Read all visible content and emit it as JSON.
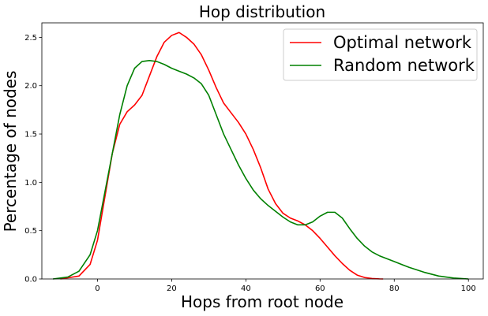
{
  "chart_data": {
    "type": "line",
    "title": "Hop distribution",
    "xlabel": "Hops from root node",
    "ylabel": "Percentage of nodes",
    "xlim": [
      -15,
      104
    ],
    "ylim": [
      0,
      2.65
    ],
    "xticks": [
      0,
      20,
      40,
      60,
      80,
      100
    ],
    "xtick_labels": [
      "0",
      "20",
      "40",
      "60",
      "80",
      "100"
    ],
    "yticks": [
      0.0,
      0.5,
      1.0,
      1.5,
      2.0,
      2.5
    ],
    "ytick_labels": [
      "0.0",
      "0.5",
      "1.0",
      "1.5",
      "2.0",
      "2.5"
    ],
    "grid": false,
    "legend_position": "top-right",
    "series": [
      {
        "name": "Optimal network",
        "color": "#ff0000",
        "x": [
          -10,
          -5,
          -2,
          0,
          2,
          4,
          6,
          8,
          10,
          12,
          14,
          16,
          18,
          20,
          22,
          24,
          26,
          28,
          30,
          32,
          34,
          36,
          38,
          40,
          42,
          44,
          46,
          48,
          50,
          52,
          54,
          56,
          58,
          60,
          62,
          64,
          66,
          68,
          70,
          72,
          74,
          76,
          77
        ],
        "y": [
          0.0,
          0.03,
          0.15,
          0.4,
          0.85,
          1.3,
          1.6,
          1.73,
          1.8,
          1.9,
          2.1,
          2.3,
          2.45,
          2.52,
          2.55,
          2.5,
          2.43,
          2.32,
          2.16,
          1.98,
          1.82,
          1.72,
          1.62,
          1.5,
          1.34,
          1.15,
          0.93,
          0.78,
          0.68,
          0.63,
          0.6,
          0.56,
          0.5,
          0.42,
          0.33,
          0.24,
          0.16,
          0.09,
          0.04,
          0.015,
          0.005,
          0.001,
          0.0
        ]
      },
      {
        "name": "Random network",
        "color": "#008000",
        "x": [
          -12,
          -8,
          -5,
          -2,
          0,
          2,
          4,
          6,
          8,
          10,
          12,
          14,
          16,
          18,
          20,
          22,
          24,
          26,
          28,
          30,
          32,
          34,
          36,
          38,
          40,
          42,
          44,
          46,
          48,
          50,
          52,
          54,
          56,
          58,
          60,
          62,
          64,
          66,
          68,
          70,
          72,
          74,
          76,
          78,
          80,
          84,
          88,
          92,
          96,
          100
        ],
        "y": [
          0.0,
          0.02,
          0.08,
          0.25,
          0.5,
          0.9,
          1.3,
          1.7,
          2.0,
          2.18,
          2.25,
          2.26,
          2.25,
          2.22,
          2.18,
          2.15,
          2.12,
          2.08,
          2.02,
          1.9,
          1.7,
          1.5,
          1.34,
          1.18,
          1.04,
          0.92,
          0.83,
          0.76,
          0.7,
          0.64,
          0.59,
          0.56,
          0.56,
          0.59,
          0.65,
          0.69,
          0.69,
          0.63,
          0.52,
          0.42,
          0.34,
          0.28,
          0.24,
          0.21,
          0.18,
          0.12,
          0.07,
          0.03,
          0.01,
          0.0
        ]
      }
    ]
  }
}
